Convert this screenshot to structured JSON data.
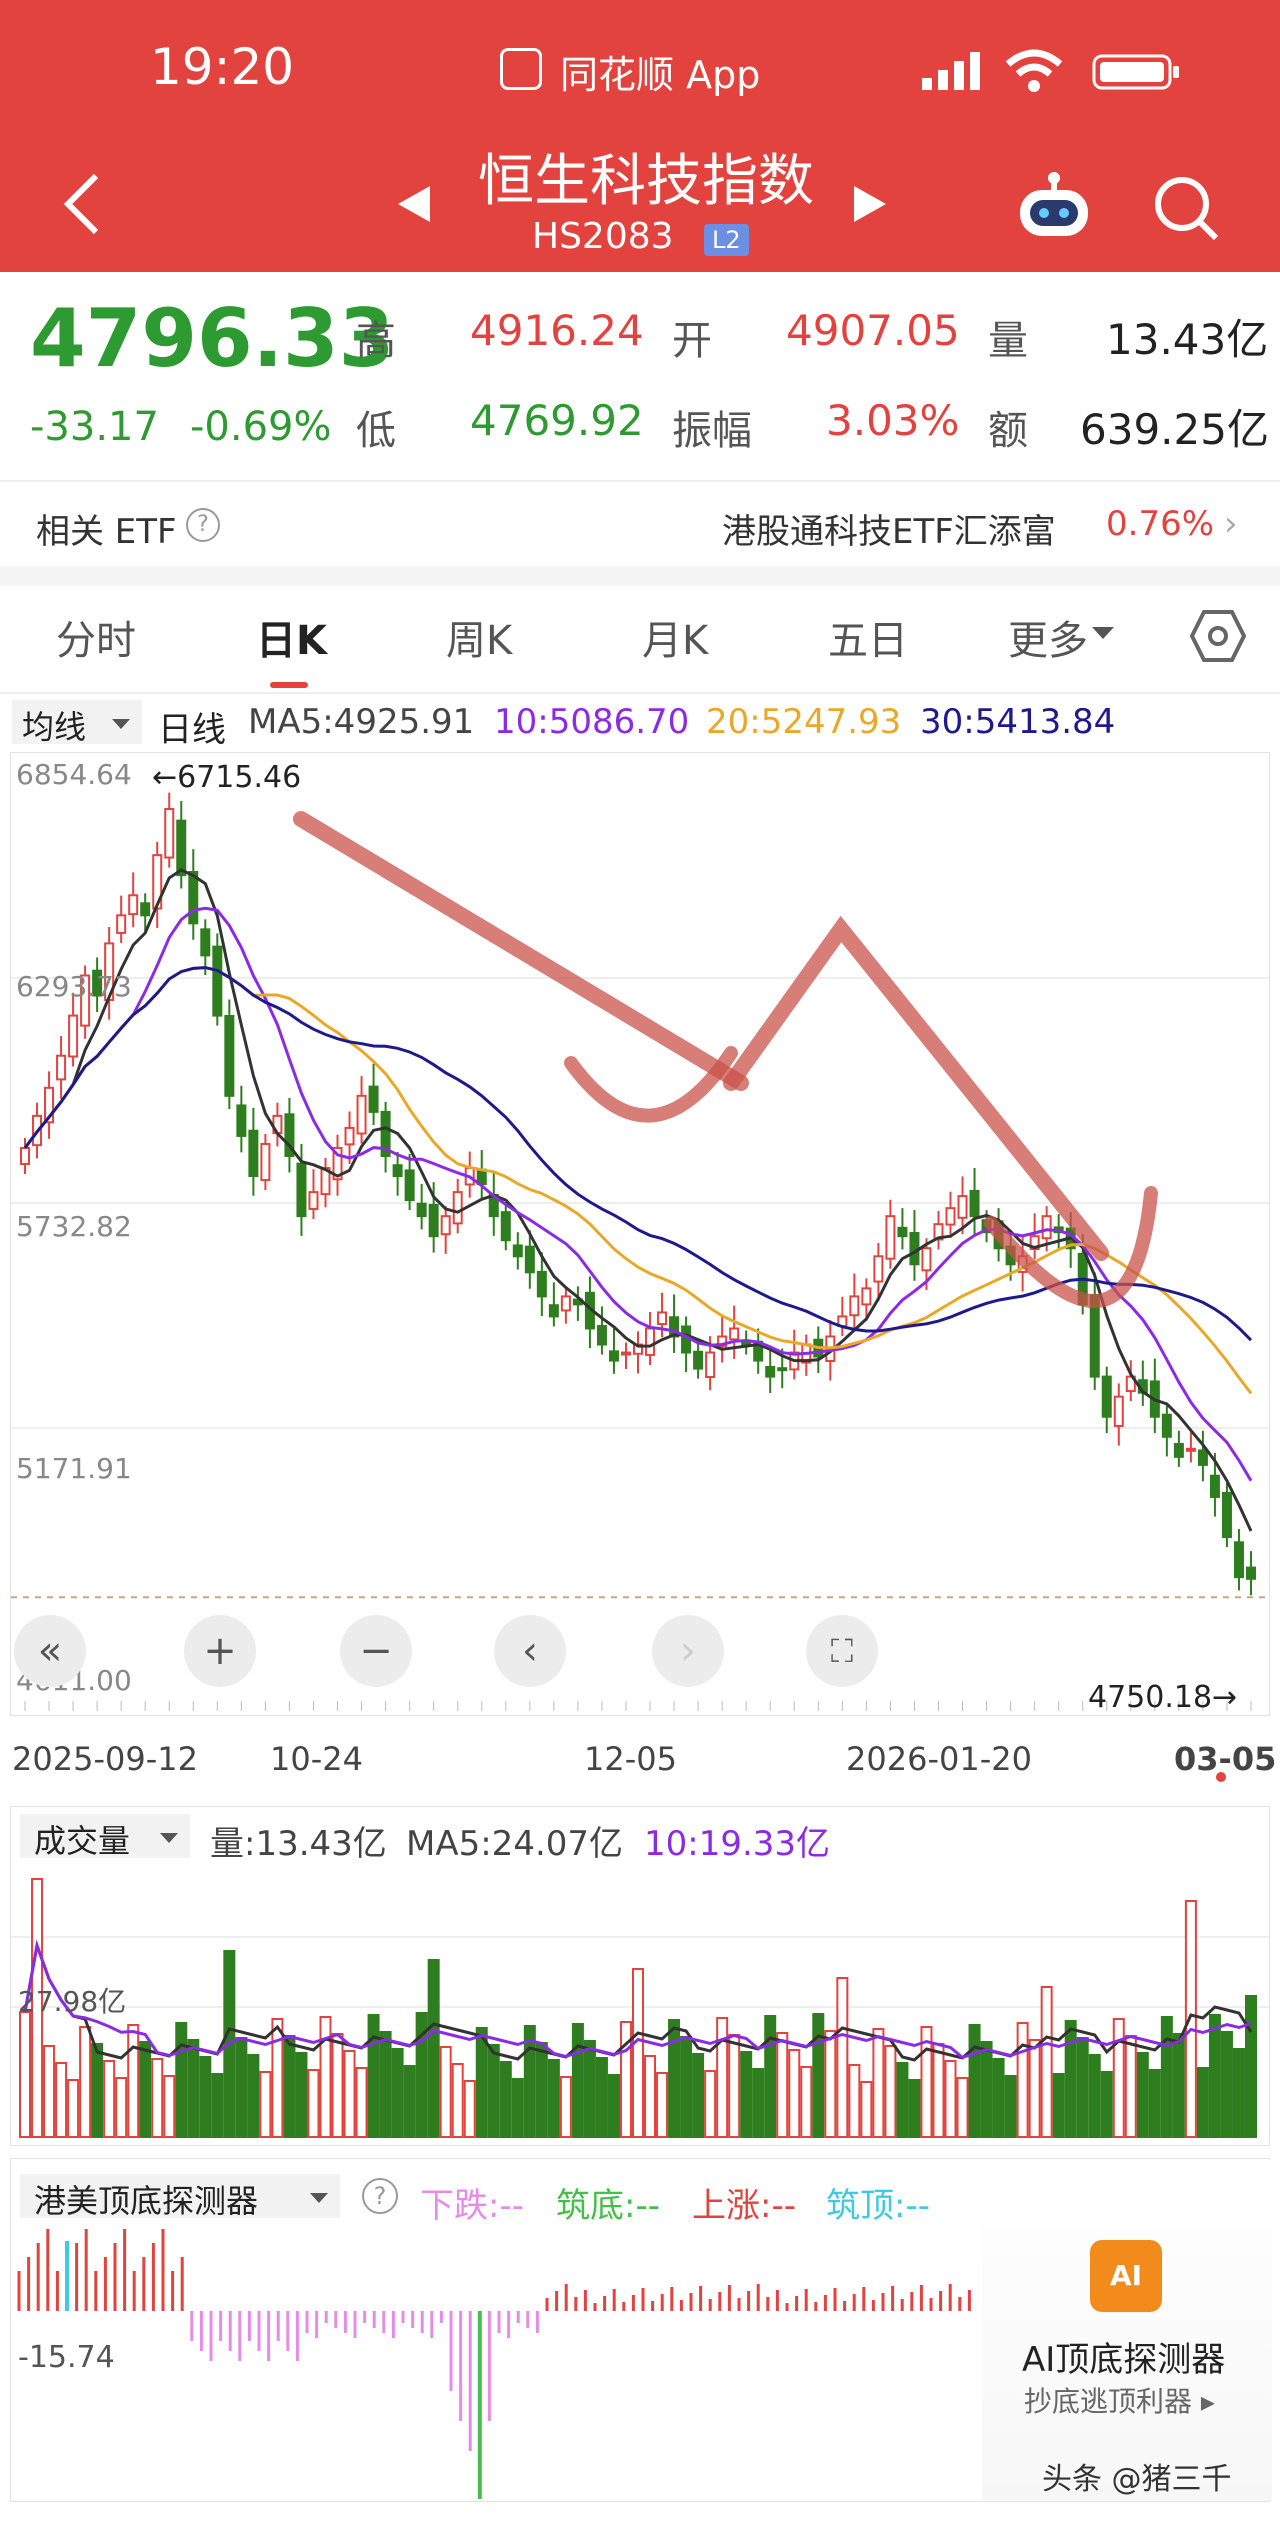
{
  "status_bar": {
    "time": "19:20",
    "app_name": "同花顺 App"
  },
  "nav": {
    "title": "恒生科技指数",
    "code": "HS2083",
    "badge": "L2"
  },
  "quote": {
    "price": "4796.33",
    "change": "-33.17",
    "change_pct": "-0.69%",
    "high_label": "高",
    "high": "4916.24",
    "open_label": "开",
    "open": "4907.05",
    "volume_label": "量",
    "volume": "13.43亿",
    "low_label": "低",
    "low": "4769.92",
    "amplitude_label": "振幅",
    "amplitude": "3.03%",
    "amount_label": "额",
    "amount": "639.25亿"
  },
  "etf": {
    "label": "相关 ETF",
    "name": "港股通科技ETF汇添富",
    "pct": "0.76%"
  },
  "tabs": [
    "分时",
    "日K",
    "周K",
    "月K",
    "五日",
    "更多"
  ],
  "active_tab": "日K",
  "ma_legend": {
    "selector": "均线",
    "period": "日线",
    "ma5": "MA5:4925.91",
    "ma10": "10:5086.70",
    "ma20": "20:5247.93",
    "ma30": "30:5413.84"
  },
  "price_axis": {
    "top": "6854.64",
    "mid1": "6293.73",
    "mid2": "5732.82",
    "mid3": "5171.91",
    "bottom": "4611.00"
  },
  "annotations": {
    "max_marker": "←6715.46",
    "min_marker": "4750.18→"
  },
  "date_axis": [
    "2025-09-12",
    "10-24",
    "12-05",
    "2026-01-20",
    "03-05"
  ],
  "volume_legend": {
    "selector": "成交量",
    "vol": "量:13.43亿",
    "ma5": "MA5:24.07亿",
    "ma10": "10:19.33亿",
    "axis": "27.98亿"
  },
  "detector_legend": {
    "selector": "港美顶底探测器",
    "down": "下跌:--",
    "bottom": "筑底:--",
    "up": "上涨:--",
    "top": "筑顶:--",
    "value": "-15.74"
  },
  "ai_promo": {
    "title": "AI顶底探测器",
    "subtitle": "抄底逃顶利器 ▸",
    "badge": "AI"
  },
  "watermark": "头条 @猪三千",
  "colors": {
    "header": "#e2433f",
    "up": "#e2433f",
    "down": "#2e7d1e",
    "ma5": "#333333",
    "ma10": "#8b2be2",
    "ma20": "#e8a92a",
    "ma30": "#1f1a8c"
  },
  "chart_data": {
    "type": "candlestick",
    "x_range": [
      "2025-09-12",
      "2026-03-05"
    ],
    "y_range": [
      4611.0,
      6854.64
    ],
    "close": [
      5870,
      5950,
      6020,
      6100,
      6200,
      6300,
      6250,
      6380,
      6450,
      6500,
      6450,
      6600,
      6715,
      6550,
      6430,
      6350,
      6200,
      6000,
      5900,
      5800,
      5880,
      5950,
      5850,
      5700,
      5760,
      5820,
      5870,
      5920,
      6000,
      5960,
      5850,
      5800,
      5740,
      5700,
      5650,
      5700,
      5760,
      5820,
      5780,
      5700,
      5640,
      5600,
      5560,
      5500,
      5450,
      5500,
      5480,
      5420,
      5380,
      5340,
      5360,
      5380,
      5420,
      5460,
      5400,
      5360,
      5320,
      5360,
      5400,
      5420,
      5380,
      5340,
      5300,
      5320,
      5360,
      5380,
      5350,
      5400,
      5450,
      5500,
      5520,
      5600,
      5700,
      5650,
      5580,
      5620,
      5680,
      5720,
      5750,
      5700,
      5660,
      5620,
      5580,
      5600,
      5650,
      5700,
      5660,
      5620,
      5480,
      5300,
      5200,
      5250,
      5300,
      5260,
      5200,
      5150,
      5100,
      5120,
      5080,
      5000,
      4900,
      4800,
      4796
    ],
    "volume_ma10": "19.33亿",
    "volume_ma5": "24.07亿"
  }
}
